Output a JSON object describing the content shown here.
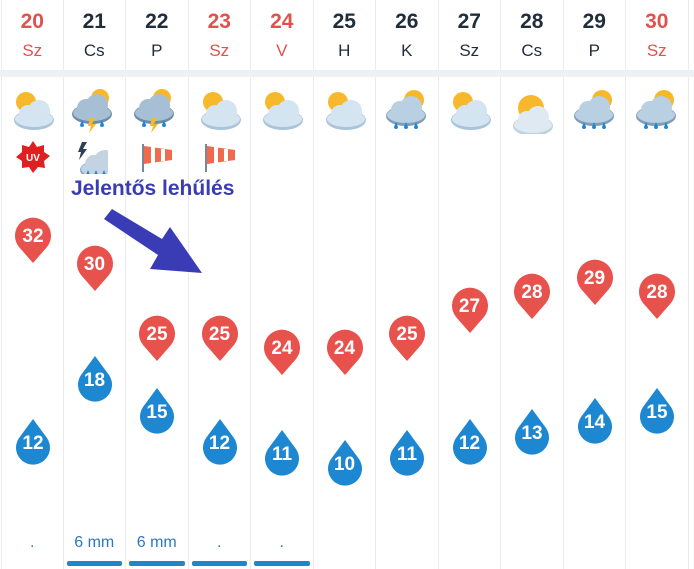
{
  "days": [
    {
      "num": "20",
      "name": "Sz",
      "weekend": true,
      "icon": "partly-cloudy-icon",
      "extra": "uv-badge-icon",
      "extra_label": "UV",
      "max": "32",
      "min": "12",
      "precip": ".",
      "bar": false
    },
    {
      "num": "21",
      "name": "Cs",
      "weekend": false,
      "icon": "thunderstorm-icon",
      "extra": "storm-rain-icon",
      "max": "30",
      "min": "18",
      "precip": "6 mm",
      "bar": true
    },
    {
      "num": "22",
      "name": "P",
      "weekend": false,
      "icon": "thunderstorm-icon",
      "extra": "windsock-icon",
      "max": "25",
      "min": "15",
      "precip": "6 mm",
      "bar": true
    },
    {
      "num": "23",
      "name": "Sz",
      "weekend": true,
      "icon": "partly-cloudy-icon",
      "extra": "windsock-icon",
      "max": "25",
      "min": "12",
      "precip": ".",
      "bar": true
    },
    {
      "num": "24",
      "name": "V",
      "weekend": true,
      "icon": "partly-cloudy-icon",
      "extra": "",
      "max": "24",
      "min": "11",
      "precip": ".",
      "bar": true
    },
    {
      "num": "25",
      "name": "H",
      "weekend": false,
      "icon": "partly-cloudy-icon",
      "extra": "",
      "max": "24",
      "min": "10",
      "precip": "",
      "bar": false
    },
    {
      "num": "26",
      "name": "K",
      "weekend": false,
      "icon": "rain-sun-icon",
      "extra": "",
      "max": "25",
      "min": "11",
      "precip": "",
      "bar": false
    },
    {
      "num": "27",
      "name": "Sz",
      "weekend": false,
      "icon": "partly-cloudy-icon",
      "extra": "",
      "max": "27",
      "min": "12",
      "precip": "",
      "bar": false
    },
    {
      "num": "28",
      "name": "Cs",
      "weekend": false,
      "icon": "sun-cloud-icon",
      "extra": "",
      "max": "28",
      "min": "13",
      "precip": "",
      "bar": false
    },
    {
      "num": "29",
      "name": "P",
      "weekend": false,
      "icon": "rain-sun-icon",
      "extra": "",
      "max": "29",
      "min": "14",
      "precip": "",
      "bar": false
    },
    {
      "num": "30",
      "name": "Sz",
      "weekend": true,
      "icon": "rain-sun-icon",
      "extra": "",
      "max": "28",
      "min": "15",
      "precip": "",
      "bar": false
    }
  ],
  "annotation": "Jelentős lehűlés",
  "colors": {
    "max_pin": "#e8524d",
    "min_drop": "#1e87d2",
    "weekend": "#e0524e",
    "text": "#1f2d3d",
    "annotation": "#3a3cb6"
  }
}
